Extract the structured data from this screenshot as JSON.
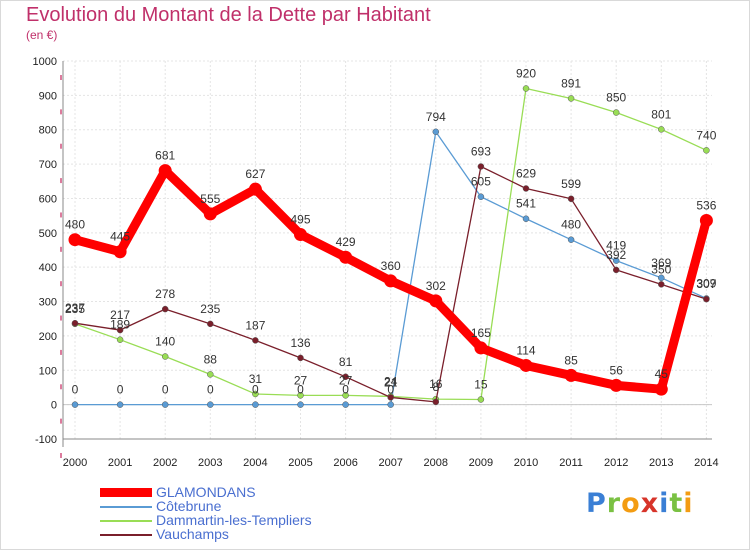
{
  "chart_data": {
    "type": "line",
    "title": "Evolution du Montant de la Dette par Habitant",
    "subtitle": "(en €)",
    "categories": [
      "2000",
      "2001",
      "2002",
      "2003",
      "2004",
      "2005",
      "2006",
      "2007",
      "2008",
      "2009",
      "2010",
      "2011",
      "2012",
      "2013",
      "2014"
    ],
    "ylim": [
      -100,
      1000
    ],
    "yticks": [
      "-100",
      "0",
      "100",
      "200",
      "300",
      "400",
      "500",
      "600",
      "700",
      "800",
      "900",
      "1000"
    ],
    "grid": true,
    "legend_position": "bottom-left",
    "series": [
      {
        "name": "GLAMONDANS",
        "color": "#ff0000",
        "values": [
          480,
          445,
          681,
          555,
          627,
          495,
          429,
          360,
          302,
          165,
          114,
          85,
          56,
          45,
          536
        ]
      },
      {
        "name": "Côtebrune",
        "color": "#5a9bd4",
        "values": [
          0,
          0,
          0,
          0,
          0,
          0,
          0,
          0,
          794,
          605,
          541,
          480,
          419,
          369,
          309
        ]
      },
      {
        "name": "Dammartin-les-Templiers",
        "color": "#99dd55",
        "values": [
          235,
          189,
          140,
          88,
          31,
          27,
          27,
          24,
          16,
          15,
          920,
          891,
          850,
          801,
          740
        ]
      },
      {
        "name": "Vauchamps",
        "color": "#7a1f2b",
        "values": [
          237,
          217,
          278,
          235,
          187,
          136,
          81,
          21,
          8,
          693,
          629,
          599,
          392,
          350,
          307
        ]
      }
    ]
  },
  "brand": {
    "letters": [
      "P",
      "r",
      "o",
      "x",
      "i",
      "t",
      "i"
    ],
    "colors": [
      "#3a7fd5",
      "#7ac143",
      "#f39c12",
      "#d7342a",
      "#3a7fd5",
      "#7ac143",
      "#f39c12"
    ]
  }
}
